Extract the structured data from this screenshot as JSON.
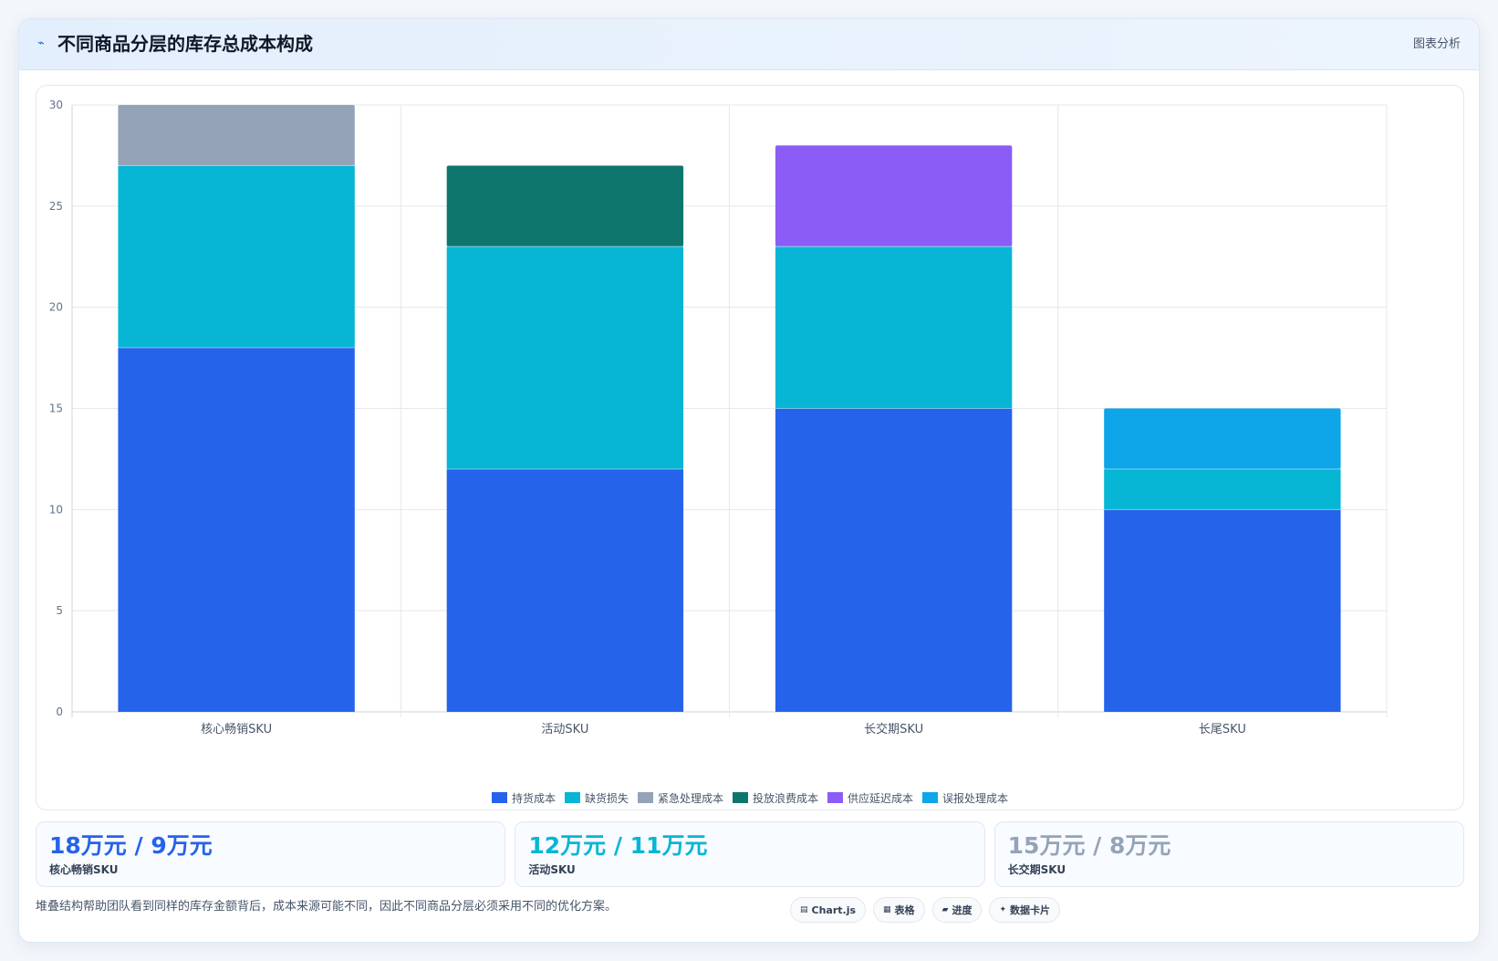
{
  "header": {
    "icon": "chart-line-icon",
    "title": "不同商品分层的库存总成本构成",
    "tag": "图表分析"
  },
  "chart_data": {
    "type": "bar",
    "stacked": true,
    "categories": [
      "核心畅销SKU",
      "活动SKU",
      "长交期SKU",
      "长尾SKU"
    ],
    "ylim": [
      0,
      30
    ],
    "yticks": [
      0,
      5,
      10,
      15,
      20,
      25,
      30
    ],
    "grid": true,
    "legend_position": "bottom",
    "series": [
      {
        "name": "持货成本",
        "color": "#2563eb",
        "values": [
          18,
          12,
          15,
          10
        ]
      },
      {
        "name": "缺货损失",
        "color": "#06b6d4",
        "values": [
          9,
          11,
          8,
          2
        ]
      },
      {
        "name": "紧急处理成本",
        "color": "#94a3b8",
        "values": [
          3,
          0,
          0,
          0
        ]
      },
      {
        "name": "投放浪费成本",
        "color": "#0f766e",
        "values": [
          0,
          4,
          0,
          0
        ]
      },
      {
        "name": "供应延迟成本",
        "color": "#8b5cf6",
        "values": [
          0,
          0,
          5,
          0
        ]
      },
      {
        "name": "误报处理成本",
        "color": "#0ea5e9",
        "values": [
          0,
          0,
          0,
          3
        ]
      }
    ]
  },
  "stats": [
    {
      "value": "18万元 / 9万元",
      "label": "核心畅销SKU",
      "color": "#2563eb"
    },
    {
      "value": "12万元 / 11万元",
      "label": "活动SKU",
      "color": "#06b6d4"
    },
    {
      "value": "15万元 / 8万元",
      "label": "长交期SKU",
      "color": "#94a3b8"
    }
  ],
  "footnote": "堆叠结构帮助团队看到同样的库存金额背后，成本来源可能不同，因此不同商品分层必须采用不同的优化方案。",
  "chips": [
    {
      "icon": "▤",
      "icon_name": "chart-icon",
      "label": "Chart.js"
    },
    {
      "icon": "▦",
      "icon_name": "table-icon",
      "label": "表格"
    },
    {
      "icon": "▰",
      "icon_name": "progress-icon",
      "label": "进度"
    },
    {
      "icon": "✦",
      "icon_name": "sparkle-icon",
      "label": "数据卡片"
    }
  ]
}
